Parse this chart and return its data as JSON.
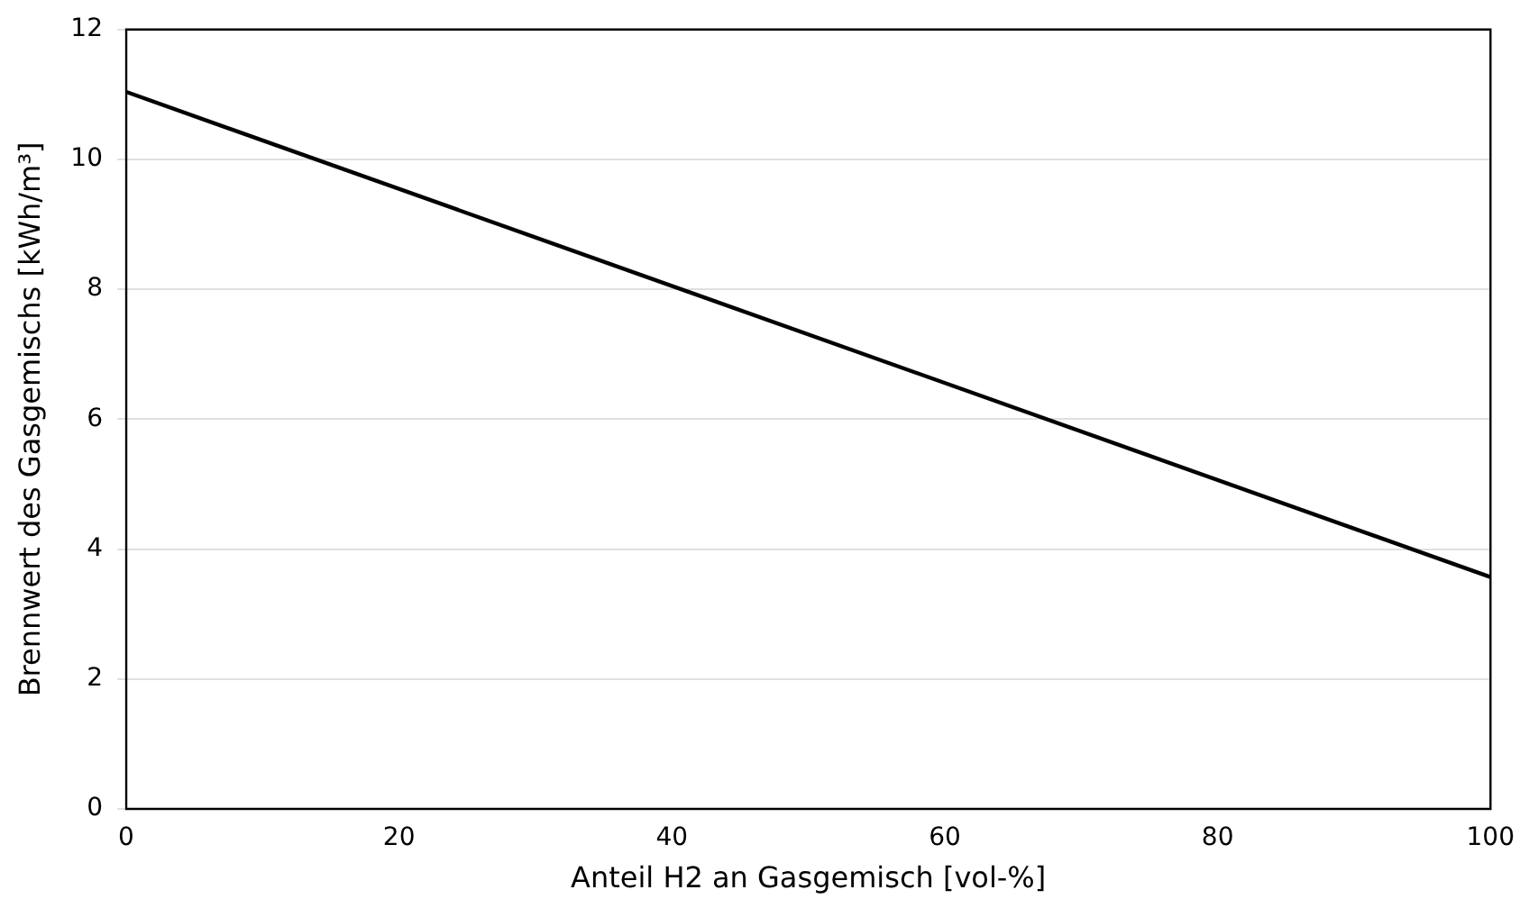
{
  "chart_data": {
    "type": "line",
    "xlabel": "Anteil H2 an Gasgemisch [vol-%]",
    "ylabel": "Brennwert des Gasgemischs [kWh/m³]",
    "x": [
      0,
      100
    ],
    "series": [
      {
        "color": "#000000",
        "values": [
          11.04,
          3.57
        ]
      }
    ],
    "xlim": [
      0,
      100
    ],
    "xticks": [
      0,
      20,
      40,
      60,
      80,
      100
    ],
    "ylim": [
      0,
      12
    ],
    "yticks": [
      0,
      2,
      4,
      6,
      8,
      10,
      12
    ],
    "grid": "y",
    "legend": false,
    "marker": "none",
    "line_style": "solid"
  }
}
